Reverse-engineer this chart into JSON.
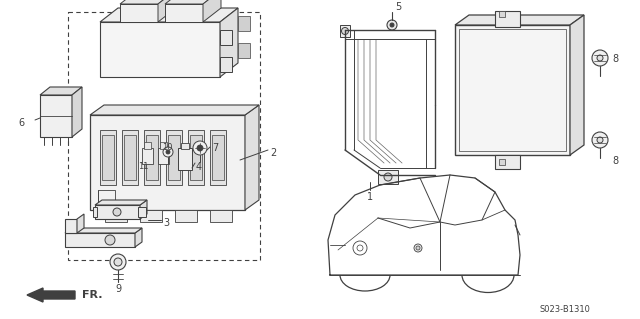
{
  "background_color": "#ffffff",
  "line_color": "#404040",
  "diagram_ref": "S023-B1310",
  "figsize": [
    6.4,
    3.19
  ],
  "dpi": 100
}
